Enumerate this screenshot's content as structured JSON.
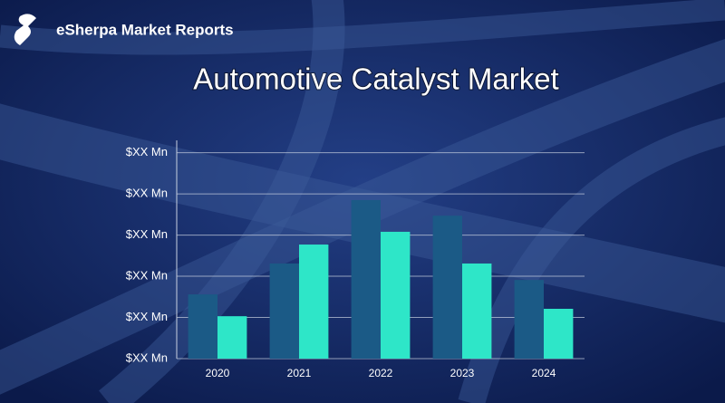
{
  "brand": "eSherpa Market Reports",
  "chart_data": {
    "type": "bar",
    "title": "Automotive Catalyst Market",
    "categories": [
      "2020",
      "2021",
      "2022",
      "2023",
      "2024"
    ],
    "series": [
      {
        "color": "#1b5a86",
        "values": [
          1.56,
          2.31,
          3.85,
          3.47,
          1.91
        ]
      },
      {
        "color": "#2ee6c8",
        "values": [
          1.03,
          2.77,
          3.08,
          2.31,
          1.21
        ]
      }
    ],
    "ylim": [
      0,
      5.3
    ],
    "yticks": [
      {
        "value": 0,
        "label": "$XX Mn"
      },
      {
        "value": 1,
        "label": "$XX Mn"
      },
      {
        "value": 2,
        "label": "$XX Mn"
      },
      {
        "value": 3,
        "label": "$XX Mn"
      },
      {
        "value": 4,
        "label": "$XX Mn"
      },
      {
        "value": 5,
        "label": "$XX Mn"
      }
    ],
    "grid": true
  }
}
